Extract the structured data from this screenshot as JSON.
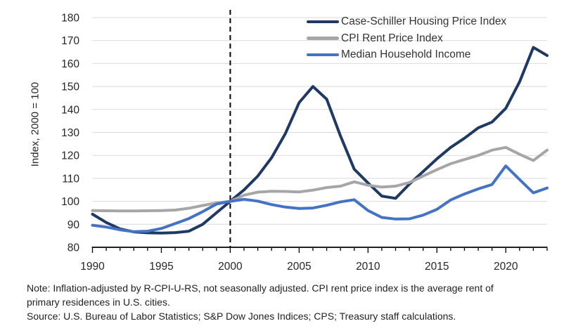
{
  "chart_data": {
    "type": "line",
    "title": "",
    "xlabel": "",
    "ylabel": "Index, 2000 = 100",
    "xlim": [
      1990,
      2023
    ],
    "ylim": [
      80,
      180
    ],
    "y_ticks": [
      80,
      90,
      100,
      110,
      120,
      130,
      140,
      150,
      160,
      170,
      180
    ],
    "x_major_ticks": [
      1990,
      1995,
      2000,
      2005,
      2010,
      2015,
      2020
    ],
    "grid": "horizontal",
    "gridline_color": "#d9d9d9",
    "legend_position": "top-right",
    "reference_line": {
      "x": 2000,
      "style": "dashed",
      "color": "#000000"
    },
    "x": [
      1990,
      1991,
      1992,
      1993,
      1994,
      1995,
      1996,
      1997,
      1998,
      1999,
      2000,
      2001,
      2002,
      2003,
      2004,
      2005,
      2006,
      2007,
      2008,
      2009,
      2010,
      2011,
      2012,
      2013,
      2014,
      2015,
      2016,
      2017,
      2018,
      2019,
      2020,
      2021,
      2022,
      2023
    ],
    "series": [
      {
        "name": "Case-Schiller Housing Price Index",
        "color": "#1f3864",
        "values": [
          94.4,
          90.8,
          88.0,
          86.7,
          86.3,
          86.2,
          86.4,
          87.0,
          90.0,
          95.0,
          100.0,
          105.0,
          111.0,
          119.0,
          129.5,
          143.0,
          150.0,
          144.5,
          128.5,
          114.0,
          108.0,
          102.3,
          101.3,
          107.5,
          113.0,
          118.5,
          123.5,
          127.5,
          132.0,
          134.5,
          140.5,
          152.0,
          167.0,
          163.5
        ]
      },
      {
        "name": "CPI Rent Price Index",
        "color": "#a6a6a6",
        "values": [
          96.0,
          95.9,
          95.8,
          95.8,
          95.9,
          96.0,
          96.2,
          97.0,
          98.2,
          99.3,
          100.0,
          102.7,
          104.0,
          104.4,
          104.3,
          104.1,
          104.9,
          106.0,
          106.6,
          108.5,
          107.0,
          106.2,
          106.6,
          108.2,
          111.0,
          113.8,
          116.4,
          118.2,
          120.0,
          122.3,
          123.5,
          120.5,
          117.8,
          122.3
        ]
      },
      {
        "name": "Median Household Income",
        "color": "#4472c4",
        "values": [
          89.6,
          88.8,
          87.6,
          86.8,
          87.0,
          88.2,
          90.3,
          92.5,
          95.5,
          98.8,
          100.0,
          100.9,
          100.1,
          98.6,
          97.5,
          96.9,
          97.1,
          98.3,
          99.8,
          100.7,
          96.0,
          93.0,
          92.3,
          92.4,
          94.0,
          96.5,
          100.6,
          103.2,
          105.4,
          107.3,
          115.4,
          109.5,
          103.7,
          105.8
        ]
      }
    ]
  },
  "notes": {
    "note": "Note: Inflation-adjusted by R-CPI-U-RS, not seasonally adjusted. CPI rent price index is the average rent of primary residences in U.S. cities.",
    "source": "Source: U.S. Bureau of Labor Statistics; S&P Dow Jones Indices; CPS; Treasury staff calculations."
  }
}
